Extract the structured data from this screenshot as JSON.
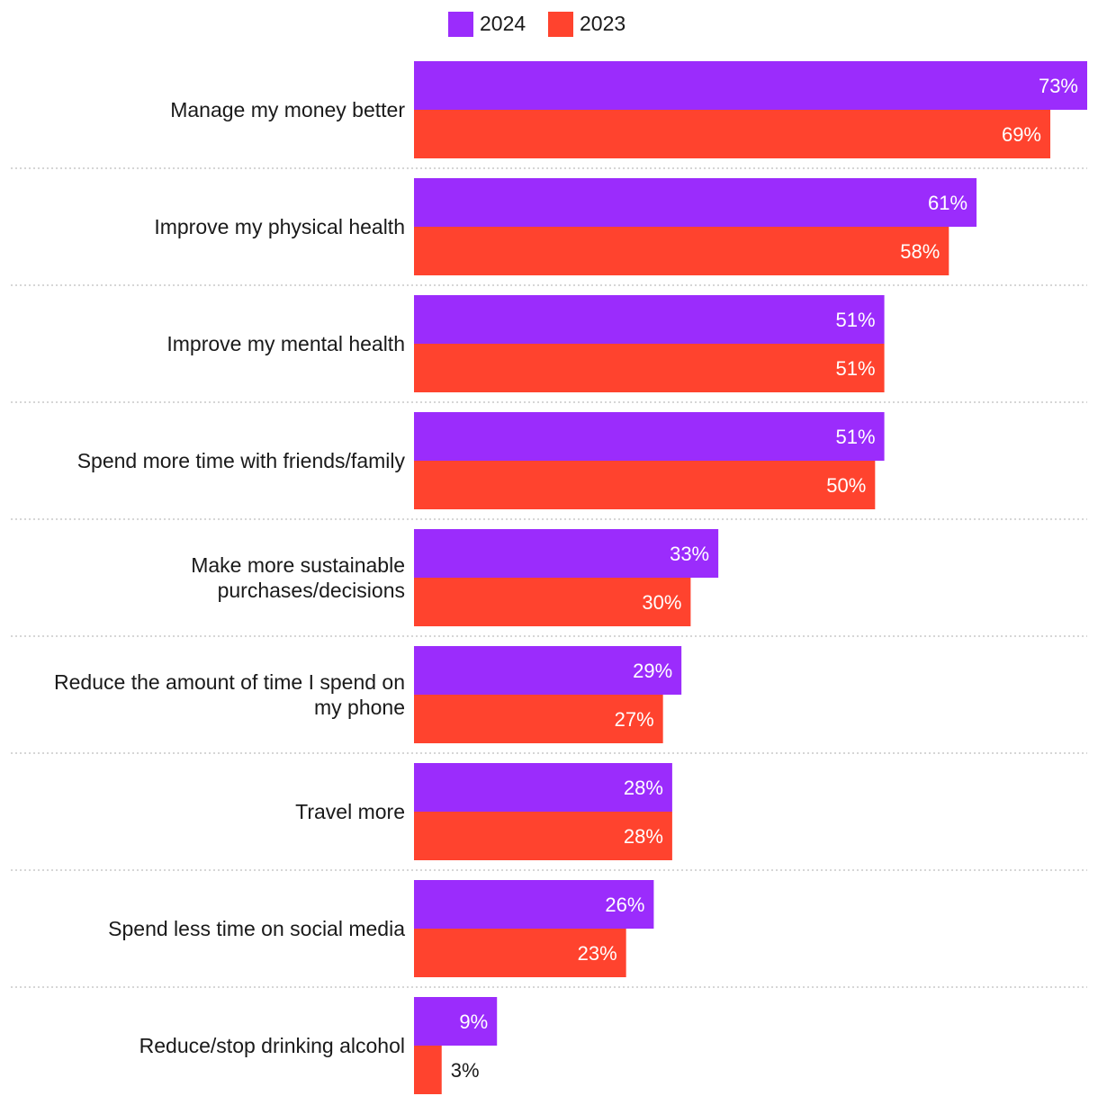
{
  "colors": {
    "series_2024": "#9b2cfc",
    "series_2023": "#ff432e",
    "label_inside": "#ffffff",
    "label_outside": "#1a1a1a"
  },
  "chart_data": {
    "type": "bar",
    "orientation": "horizontal",
    "title": "",
    "xlabel": "",
    "ylabel": "",
    "xlim": [
      0,
      73
    ],
    "legend": "top-center",
    "grid": false,
    "categories": [
      [
        "Manage my money better"
      ],
      [
        "Improve my physical health"
      ],
      [
        "Improve my mental health"
      ],
      [
        "Spend more time with friends/family"
      ],
      [
        "Make more sustainable",
        "purchases/decisions"
      ],
      [
        "Reduce the amount of time I spend on",
        "my phone"
      ],
      [
        "Travel more"
      ],
      [
        "Spend less time on social media"
      ],
      [
        "Reduce/stop drinking alcohol"
      ]
    ],
    "series": [
      {
        "name": "2024",
        "values": [
          73,
          61,
          51,
          51,
          33,
          29,
          28,
          26,
          9
        ],
        "labels": [
          "73%",
          "61%",
          "51%",
          "51%",
          "33%",
          "29%",
          "28%",
          "26%",
          "9%"
        ]
      },
      {
        "name": "2023",
        "values": [
          69,
          58,
          51,
          50,
          30,
          27,
          28,
          23,
          3
        ],
        "labels": [
          "69%",
          "58%",
          "51%",
          "50%",
          "30%",
          "27%",
          "28%",
          "23%",
          "3%"
        ]
      }
    ]
  }
}
